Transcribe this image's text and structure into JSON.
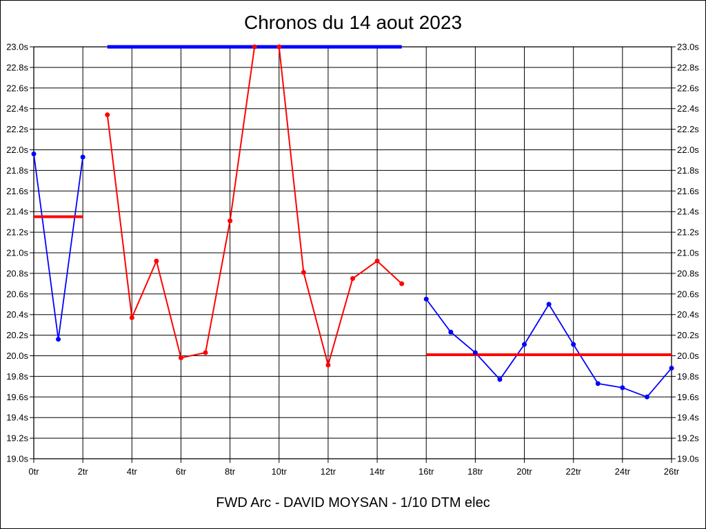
{
  "title": "Chronos du 14 aout 2023",
  "caption": "FWD Arc - DAVID MOYSAN - 1/10 DTM elec",
  "colors": {
    "blue": "#0000ff",
    "red": "#ff0000",
    "grid": "#000000",
    "text": "#000000",
    "background": "#ffffff"
  },
  "chart_data": {
    "type": "line",
    "title": "Chronos du 14 aout 2023",
    "subtitle": "FWD Arc - DAVID MOYSAN - 1/10 DTM elec",
    "xlabel": "",
    "ylabel": "",
    "x_unit": "tr (laps)",
    "y_unit": "s (seconds)",
    "xlim": [
      0,
      26
    ],
    "ylim": [
      19.0,
      23.0
    ],
    "grid": true,
    "legend": "none",
    "x_ticks": {
      "values": [
        0,
        2,
        4,
        6,
        8,
        10,
        12,
        14,
        16,
        18,
        20,
        22,
        24,
        26
      ],
      "labels": [
        "0tr",
        "2tr",
        "4tr",
        "6tr",
        "8tr",
        "10tr",
        "12tr",
        "14tr",
        "16tr",
        "18tr",
        "20tr",
        "22tr",
        "24tr",
        "26tr"
      ]
    },
    "y_ticks": {
      "values": [
        23.0,
        22.8,
        22.6,
        22.4,
        22.2,
        22.0,
        21.8,
        21.6,
        21.4,
        21.2,
        21.0,
        20.8,
        20.6,
        20.4,
        20.2,
        20.0,
        19.8,
        19.6,
        19.4,
        19.2,
        19.0
      ],
      "labels": [
        "23.0s",
        "22.8s",
        "22.6s",
        "22.4s",
        "22.2s",
        "22.0s",
        "21.8s",
        "21.6s",
        "21.4s",
        "21.2s",
        "21.0s",
        "20.8s",
        "20.6s",
        "20.4s",
        "20.2s",
        "20.0s",
        "19.8s",
        "19.6s",
        "19.4s",
        "19.2s",
        "19.0s"
      ]
    },
    "series": [
      {
        "name": "stint-1-blue",
        "color": "#0000ff",
        "x": [
          0,
          1,
          2
        ],
        "values": [
          21.96,
          20.16,
          21.93
        ]
      },
      {
        "name": "stint-2-red",
        "color": "#ff0000",
        "x": [
          3,
          4,
          5,
          6,
          7,
          8,
          9,
          10,
          11,
          12,
          13,
          14,
          15
        ],
        "values": [
          22.34,
          20.37,
          20.92,
          19.98,
          20.03,
          21.31,
          23.0,
          23.0,
          20.81,
          19.91,
          20.75,
          20.92,
          20.7
        ]
      },
      {
        "name": "stint-3-blue",
        "color": "#0000ff",
        "x": [
          16,
          17,
          18,
          19,
          20,
          21,
          22,
          23,
          24,
          25,
          26
        ],
        "values": [
          20.55,
          20.23,
          20.03,
          19.77,
          20.11,
          20.5,
          20.11,
          19.73,
          19.69,
          19.6,
          19.88
        ]
      }
    ],
    "average_lines": [
      {
        "name": "average-stint-1",
        "value": 21.35,
        "x_start": 0,
        "x_end": 2,
        "color": "#ff0000"
      },
      {
        "name": "average-stint-2-capped",
        "value": 23.0,
        "x_start": 3,
        "x_end": 15,
        "color": "#0000ff"
      },
      {
        "name": "average-stint-3",
        "value": 20.01,
        "x_start": 16,
        "x_end": 26,
        "color": "#ff0000"
      }
    ]
  }
}
